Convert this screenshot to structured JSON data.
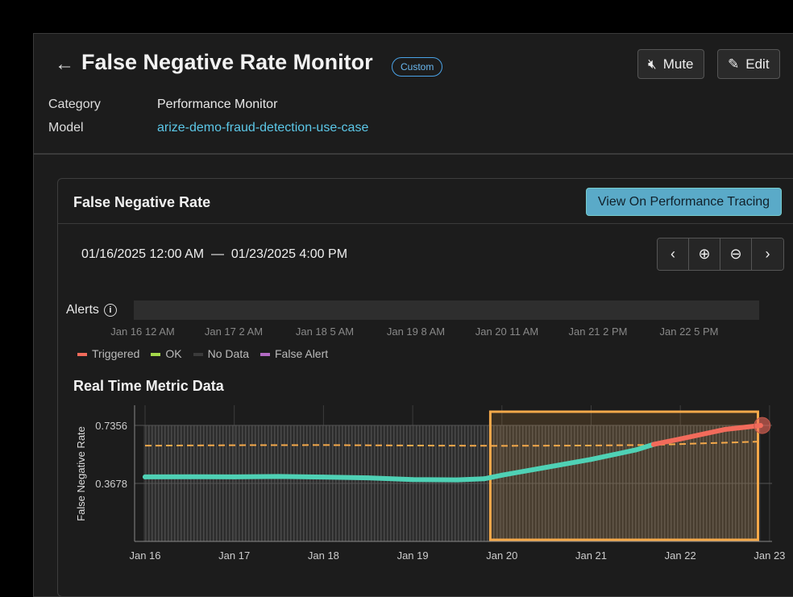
{
  "header": {
    "back_icon": "arrow-left-icon",
    "title": "False Negative Rate Monitor",
    "badge": "Custom",
    "mute_label": "Mute",
    "edit_label": "Edit",
    "category_label": "Category",
    "category_value": "Performance Monitor",
    "model_label": "Model",
    "model_value": "arize-demo-fraud-detection-use-case"
  },
  "card": {
    "title": "False Negative Rate",
    "view_button": "View On Performance Tracing",
    "range_start": "01/16/2025 12:00 AM",
    "range_sep": "—",
    "range_end": "01/23/2025 4:00 PM",
    "alerts_label": "Alerts",
    "alert_ticks": [
      "Jan 16 12 AM",
      "Jan 17 2 AM",
      "Jan 18 5 AM",
      "Jan 19 8 AM",
      "Jan 20 11 AM",
      "Jan 21 2 PM",
      "Jan 22 5 PM"
    ],
    "legend": [
      {
        "label": "Triggered",
        "color": "#f26b5b"
      },
      {
        "label": "OK",
        "color": "#a4d94a"
      },
      {
        "label": "No Data",
        "color": "#3a3a3a"
      },
      {
        "label": "False Alert",
        "color": "#b36bc4"
      }
    ],
    "realtime_title": "Real Time Metric Data"
  },
  "chart_data": {
    "type": "line",
    "ylabel": "False Negative Rate",
    "yticks": [
      0.3678,
      0.7356
    ],
    "ylim": [
      0,
      0.82
    ],
    "xticks": [
      "Jan 16",
      "Jan 17",
      "Jan 18",
      "Jan 19",
      "Jan 20",
      "Jan 21",
      "Jan 22",
      "Jan 23"
    ],
    "xlim_days": [
      16,
      23
    ],
    "colors": {
      "ok": "#4fd1b5",
      "triggered": "#f26b5b",
      "threshold": "#f5a94a",
      "highlight": "#f5a94a"
    },
    "highlight_range_days": [
      19.87,
      22.87
    ],
    "metric": [
      [
        16,
        0.409
      ],
      [
        16.5,
        0.41
      ],
      [
        17,
        0.409
      ],
      [
        17.5,
        0.412
      ],
      [
        18,
        0.408
      ],
      [
        18.5,
        0.403
      ],
      [
        19,
        0.392
      ],
      [
        19.5,
        0.39
      ],
      [
        19.8,
        0.397
      ],
      [
        20,
        0.42
      ],
      [
        20.5,
        0.47
      ],
      [
        21,
        0.52
      ],
      [
        21.5,
        0.58
      ],
      [
        21.7,
        0.615
      ],
      [
        22,
        0.65
      ],
      [
        22.5,
        0.71
      ],
      [
        22.9,
        0.735
      ]
    ],
    "triggered_from_day": 21.7,
    "threshold": [
      [
        16,
        0.607
      ],
      [
        17,
        0.61
      ],
      [
        18,
        0.611
      ],
      [
        19,
        0.608
      ],
      [
        20,
        0.606
      ],
      [
        21,
        0.608
      ],
      [
        21.7,
        0.612
      ],
      [
        22.9,
        0.633
      ]
    ]
  }
}
